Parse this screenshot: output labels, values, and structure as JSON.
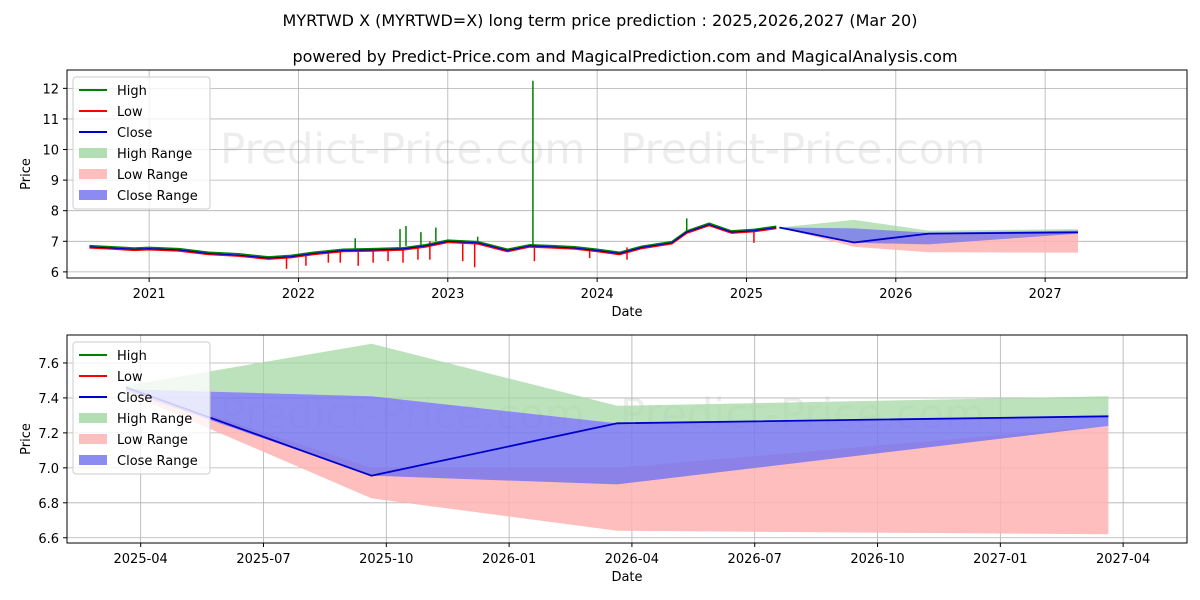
{
  "title": "MYRTWD X (MYRTWD=X) long term price prediction : 2025,2026,2027 (Mar 20)",
  "subtitle": "powered by Predict-Price.com and MagicalPrediction.com and MagicalAnalysis.com",
  "watermark": "Predict-Price.com",
  "colors": {
    "high": "#008000",
    "low": "#ff0000",
    "close": "#0000cc",
    "high_range": "#a6d8a6",
    "low_range": "#ffb3b3",
    "close_range": "#7777ee",
    "grid": "#b0b0b0"
  },
  "legend": [
    {
      "key": "high",
      "label": "High",
      "kind": "line"
    },
    {
      "key": "low",
      "label": "Low",
      "kind": "line"
    },
    {
      "key": "close",
      "label": "Close",
      "kind": "line"
    },
    {
      "key": "high_range",
      "label": "High Range",
      "kind": "patch"
    },
    {
      "key": "low_range",
      "label": "Low Range",
      "kind": "patch"
    },
    {
      "key": "close_range",
      "label": "Close Range",
      "kind": "patch"
    }
  ],
  "chart_data": [
    {
      "type": "line",
      "xlabel": "Date",
      "ylabel": "Price",
      "xlim": [
        2020.45,
        2027.95
      ],
      "ylim": [
        5.8,
        12.6
      ],
      "xticks": [
        2021,
        2022,
        2023,
        2024,
        2025,
        2026,
        2027
      ],
      "xtick_labels": [
        "2021",
        "2022",
        "2023",
        "2024",
        "2025",
        "2026",
        "2027"
      ],
      "yticks": [
        6,
        7,
        8,
        9,
        10,
        11,
        12
      ],
      "grid": true,
      "legend_position": "upper-left",
      "history": {
        "x": [
          2020.6,
          2020.75,
          2020.9,
          2021.0,
          2021.2,
          2021.4,
          2021.6,
          2021.8,
          2021.95,
          2022.1,
          2022.3,
          2022.5,
          2022.7,
          2022.85,
          2023.0,
          2023.2,
          2023.4,
          2023.55,
          2023.7,
          2023.85,
          2024.0,
          2024.15,
          2024.3,
          2024.5,
          2024.6,
          2024.75,
          2024.9,
          2025.05,
          2025.2
        ],
        "close": [
          6.82,
          6.78,
          6.74,
          6.76,
          6.72,
          6.6,
          6.55,
          6.45,
          6.5,
          6.6,
          6.7,
          6.72,
          6.75,
          6.85,
          7.0,
          6.95,
          6.7,
          6.85,
          6.82,
          6.78,
          6.7,
          6.6,
          6.8,
          6.95,
          7.3,
          7.55,
          7.3,
          7.35,
          7.45
        ],
        "high_spikes": [
          {
            "x": 2022.38,
            "y": 7.1
          },
          {
            "x": 2022.68,
            "y": 7.4
          },
          {
            "x": 2022.72,
            "y": 7.5
          },
          {
            "x": 2022.82,
            "y": 7.3
          },
          {
            "x": 2022.92,
            "y": 7.45
          },
          {
            "x": 2023.2,
            "y": 7.15
          },
          {
            "x": 2023.57,
            "y": 12.25
          },
          {
            "x": 2024.6,
            "y": 7.75
          }
        ],
        "low_spikes": [
          {
            "x": 2021.92,
            "y": 6.1
          },
          {
            "x": 2022.05,
            "y": 6.2
          },
          {
            "x": 2022.2,
            "y": 6.3
          },
          {
            "x": 2022.28,
            "y": 6.3
          },
          {
            "x": 2022.4,
            "y": 6.2
          },
          {
            "x": 2022.5,
            "y": 6.3
          },
          {
            "x": 2022.6,
            "y": 6.35
          },
          {
            "x": 2022.7,
            "y": 6.3
          },
          {
            "x": 2022.8,
            "y": 6.4
          },
          {
            "x": 2022.88,
            "y": 6.4
          },
          {
            "x": 2023.1,
            "y": 6.35
          },
          {
            "x": 2023.18,
            "y": 6.15
          },
          {
            "x": 2023.58,
            "y": 6.35
          },
          {
            "x": 2023.95,
            "y": 6.45
          },
          {
            "x": 2024.2,
            "y": 6.4
          },
          {
            "x": 2025.05,
            "y": 6.95
          }
        ]
      },
      "prediction": {
        "x": [
          2025.22,
          2025.72,
          2026.22,
          2027.22
        ],
        "close": [
          7.45,
          6.96,
          7.25,
          7.29
        ],
        "high_range_top": [
          7.45,
          7.7,
          7.35,
          7.4
        ],
        "close_range_top": [
          7.45,
          7.42,
          7.28,
          7.35
        ],
        "close_range_bottom": [
          7.45,
          6.95,
          6.9,
          7.25
        ],
        "low_range_bottom": [
          7.45,
          6.82,
          6.64,
          6.63
        ]
      }
    },
    {
      "type": "line",
      "xlabel": "Date",
      "ylabel": "Price",
      "xlim": [
        2025.1,
        2027.38
      ],
      "ylim": [
        6.57,
        7.76
      ],
      "xticks": [
        2025.25,
        2025.5,
        2025.75,
        2026.0,
        2026.25,
        2026.5,
        2026.75,
        2027.0,
        2027.25
      ],
      "xtick_labels": [
        "2025-04",
        "2025-07",
        "2025-10",
        "2026-01",
        "2026-04",
        "2026-07",
        "2026-10",
        "2027-01",
        "2027-04"
      ],
      "yticks": [
        6.6,
        6.8,
        7.0,
        7.2,
        7.4,
        7.6
      ],
      "ytick_labels": [
        "6.6",
        "6.8",
        "7.0",
        "7.2",
        "7.4",
        "7.6"
      ],
      "grid": true,
      "legend_position": "upper-left",
      "x": [
        2025.22,
        2025.72,
        2026.22,
        2027.22
      ],
      "close": [
        7.46,
        6.955,
        7.255,
        7.295
      ],
      "high_range_top": [
        7.47,
        7.71,
        7.355,
        7.41
      ],
      "close_range_top": [
        7.45,
        7.41,
        7.255,
        7.3
      ],
      "close_range_bottom": [
        7.44,
        6.955,
        6.905,
        7.24
      ],
      "low_range_top": [
        7.46,
        7.0,
        7.0,
        7.24
      ],
      "low_range_bottom": [
        7.43,
        6.825,
        6.64,
        6.62
      ]
    }
  ]
}
